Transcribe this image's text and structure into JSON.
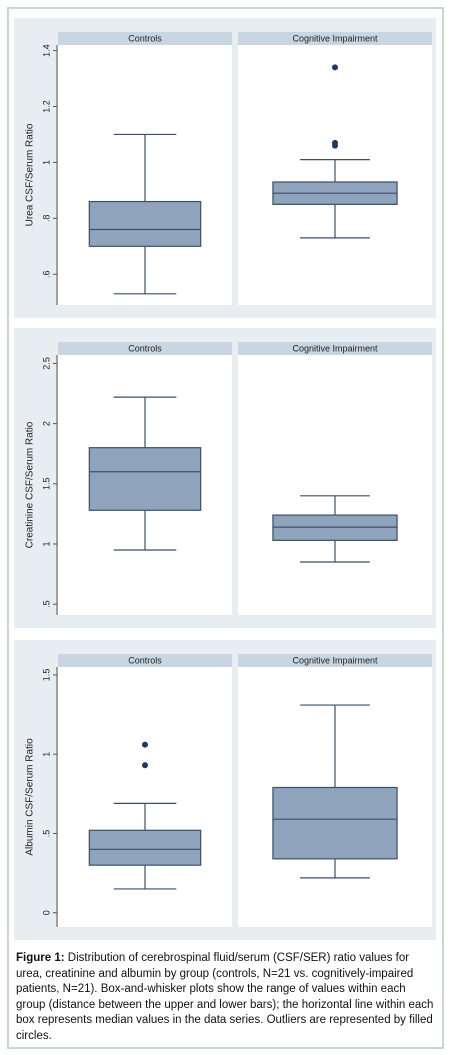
{
  "chart_data": [
    {
      "type": "box",
      "ylabel": "Urea CSF/Serum Ratio",
      "categories": [
        "Controls",
        "Cognitive Impairment"
      ],
      "boxes": [
        {
          "whislo": 0.53,
          "q1": 0.7,
          "med": 0.76,
          "q3": 0.86,
          "whishi": 1.1
        },
        {
          "whislo": 0.73,
          "q1": 0.85,
          "med": 0.89,
          "q3": 0.93,
          "whishi": 1.01,
          "outliers": [
            1.06,
            1.07,
            1.34
          ]
        }
      ],
      "ylim": [
        0.49,
        1.42
      ],
      "yticks": [
        {
          "value": 0.6,
          "label": ".6"
        },
        {
          "value": 0.8,
          "label": ".8"
        },
        1,
        1.2,
        1.4
      ],
      "color": "#8fa3bd"
    },
    {
      "type": "box",
      "ylabel": "Creatinine CSF/Serum Ratio",
      "categories": [
        "Controls",
        "Cognitive Impairment"
      ],
      "boxes": [
        {
          "whislo": 0.95,
          "q1": 1.28,
          "med": 1.6,
          "q3": 1.8,
          "whishi": 2.22
        },
        {
          "whislo": 0.85,
          "q1": 1.03,
          "med": 1.14,
          "q3": 1.24,
          "whishi": 1.4
        }
      ],
      "ylim": [
        0.41,
        2.57
      ],
      "yticks": [
        {
          "value": 0.5,
          "label": ".5"
        },
        1,
        1.5,
        2,
        2.5
      ],
      "color": "#8fa3bd"
    },
    {
      "type": "box",
      "ylabel": "Albumin CSF/Serum Ratio",
      "categories": [
        "Controls",
        "Cognitive Impairment"
      ],
      "boxes": [
        {
          "whislo": 0.15,
          "q1": 0.3,
          "med": 0.4,
          "q3": 0.52,
          "whishi": 0.69,
          "outliers": [
            0.93,
            1.06
          ]
        },
        {
          "whislo": 0.22,
          "q1": 0.34,
          "med": 0.59,
          "q3": 0.79,
          "whishi": 1.31
        }
      ],
      "ylim": [
        -0.09,
        1.55
      ],
      "yticks": [
        0,
        {
          "value": 0.5,
          "label": ".5"
        },
        1,
        1.5
      ],
      "color": "#8fa3bd"
    }
  ],
  "caption": {
    "label": "Figure 1:",
    "text": "Distribution of cerebrospinal fluid/serum (CSF/SER) ratio values for urea, creatinine and albumin by group (controls, N=21 vs. cognitively-impaired patients, N=21). Box-and-whisker plots show the range of values within each group (distance between the upper and lower bars); the horizontal line within each box represents median values in the data series. Outliers are represented by filled circles."
  }
}
